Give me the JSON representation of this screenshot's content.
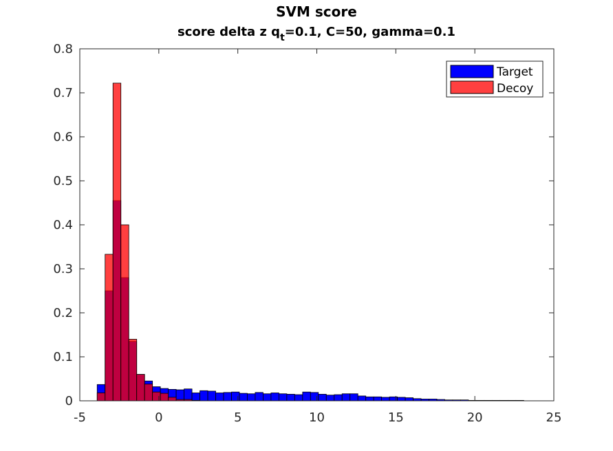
{
  "chart_data": {
    "type": "bar",
    "title": "SVM score",
    "subtitle_main": "score delta z q",
    "subtitle_sub": "t",
    "subtitle_rest": "=0.1, C=50, gamma=0.1",
    "xlim": [
      -5,
      25
    ],
    "ylim": [
      0,
      0.8
    ],
    "x_ticks": [
      "-5",
      "0",
      "5",
      "10",
      "15",
      "20",
      "25"
    ],
    "y_ticks": [
      "0",
      "0.1",
      "0.2",
      "0.3",
      "0.4",
      "0.5",
      "0.6",
      "0.7",
      "0.8"
    ],
    "x_tick_values": [
      -5,
      0,
      5,
      10,
      15,
      20,
      25
    ],
    "y_tick_values": [
      0,
      0.1,
      0.2,
      0.3,
      0.4,
      0.5,
      0.6,
      0.7,
      0.8
    ],
    "legend_position": "top-right",
    "series": [
      {
        "name": "Target",
        "color": "#0000ff",
        "bin_width": 0.5,
        "bin_starts": [
          -3.9,
          -3.4,
          -2.9,
          -2.4,
          -1.9,
          -1.4,
          -0.9,
          -0.4,
          0.1,
          0.6,
          1.1,
          1.6,
          2.1,
          2.6,
          3.1,
          3.6,
          4.1,
          4.6,
          5.1,
          5.6,
          6.1,
          6.6,
          7.1,
          7.6,
          8.1,
          8.6,
          9.1,
          9.6,
          10.1,
          10.6,
          11.1,
          11.6,
          12.1,
          12.6,
          13.1,
          13.6,
          14.1,
          14.6,
          15.1,
          15.6,
          16.1,
          16.6,
          17.1,
          17.6,
          18.1,
          18.6,
          19.1,
          19.6,
          20.1,
          20.6,
          21.1,
          21.6,
          22.1,
          22.6
        ],
        "values": [
          0.037,
          0.25,
          0.455,
          0.28,
          0.135,
          0.06,
          0.045,
          0.032,
          0.028,
          0.026,
          0.025,
          0.027,
          0.018,
          0.023,
          0.022,
          0.018,
          0.019,
          0.02,
          0.017,
          0.016,
          0.019,
          0.016,
          0.018,
          0.016,
          0.015,
          0.014,
          0.02,
          0.019,
          0.015,
          0.013,
          0.014,
          0.016,
          0.016,
          0.011,
          0.009,
          0.009,
          0.008,
          0.009,
          0.008,
          0.007,
          0.005,
          0.004,
          0.004,
          0.003,
          0.002,
          0.002,
          0.002,
          0.001,
          0.001,
          0.001,
          0.001,
          0.001,
          0.001,
          0.001
        ]
      },
      {
        "name": "Decoy",
        "color": "#ff0000",
        "bin_width": 0.5,
        "bin_starts": [
          -3.9,
          -3.4,
          -2.9,
          -2.4,
          -1.9,
          -1.4,
          -0.9,
          -0.4,
          0.1,
          0.6,
          1.1,
          1.6,
          2.1
        ],
        "values": [
          0.018,
          0.333,
          0.722,
          0.4,
          0.14,
          0.06,
          0.038,
          0.02,
          0.017,
          0.008,
          0.003,
          0.003,
          0.001
        ]
      }
    ]
  }
}
